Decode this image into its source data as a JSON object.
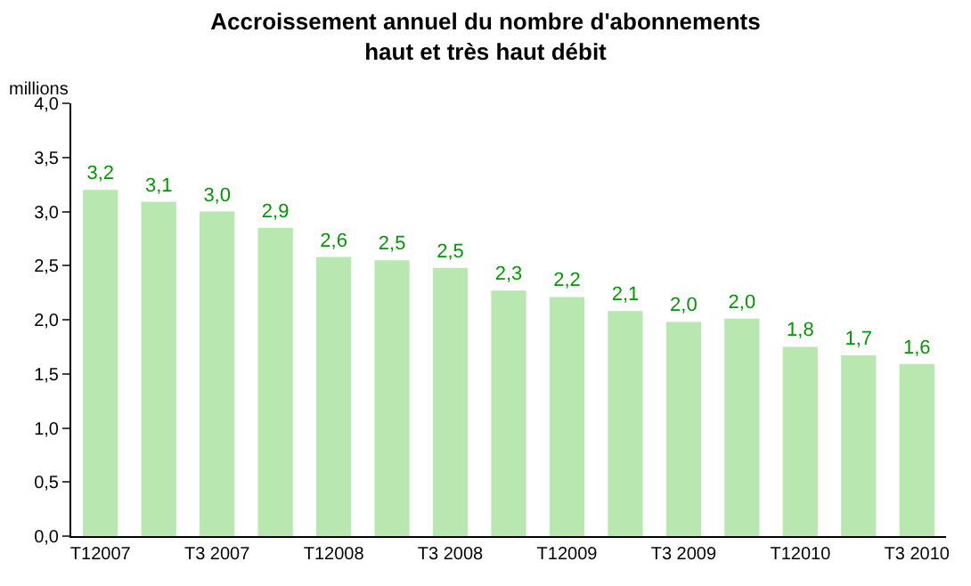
{
  "chart_data": {
    "type": "bar",
    "title": "Accroissement annuel du nombre d'abonnements\nhaut et très haut débit",
    "ylabel": "millions",
    "categories": [
      "T12007",
      null,
      "T3 2007",
      null,
      "T12008",
      null,
      "T3 2008",
      null,
      "T12009",
      null,
      "T3 2009",
      null,
      "T12010",
      null,
      "T3 2010"
    ],
    "values": [
      3.2,
      3.09,
      3.0,
      2.85,
      2.58,
      2.55,
      2.48,
      2.27,
      2.21,
      2.08,
      1.98,
      2.01,
      1.75,
      1.67,
      1.59
    ],
    "value_labels": [
      "3,2",
      "3,1",
      "3,0",
      "2,9",
      "2,6",
      "2,5",
      "2,5",
      "2,3",
      "2,2",
      "2,1",
      "2,0",
      "2,0",
      "1,8",
      "1,7",
      "1,6"
    ],
    "color": "#b8e8b0",
    "ylim": [
      0,
      4
    ],
    "yticks": [
      {
        "value": 0,
        "label": "0,0"
      },
      {
        "value": 0.5,
        "label": "0,5"
      },
      {
        "value": 1,
        "label": "1,0"
      },
      {
        "value": 1.5,
        "label": "1,5"
      },
      {
        "value": 2,
        "label": "2,0"
      },
      {
        "value": 2.5,
        "label": "2,5"
      },
      {
        "value": 3,
        "label": "3,0"
      },
      {
        "value": 3.5,
        "label": "3,5"
      },
      {
        "value": 4,
        "label": "4,0"
      }
    ],
    "legend": false
  }
}
